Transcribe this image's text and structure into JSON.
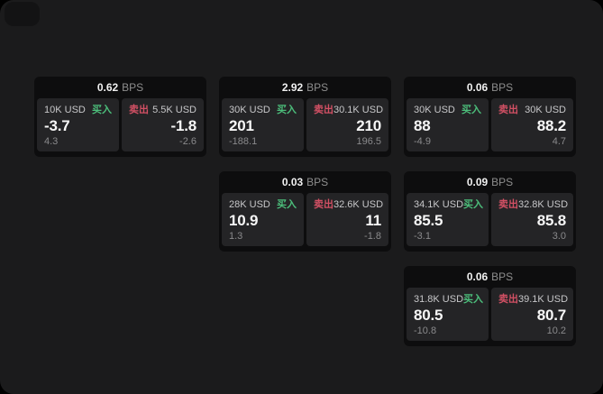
{
  "labels": {
    "bps": "BPS",
    "buy": "买入",
    "sell": "卖出"
  },
  "colors": {
    "buy_accent": "#4cbe7b",
    "sell_accent": "#d25064",
    "panel_bg": "#1b1b1c",
    "card_bg": "#0d0d0e",
    "pane_bg": "#242426"
  },
  "cards": [
    {
      "bps": "0.62",
      "buy": {
        "amount": "10K USD",
        "price": "-3.7",
        "delta": "4.3"
      },
      "sell": {
        "amount": "5.5K USD",
        "price": "-1.8",
        "delta": "-2.6"
      }
    },
    {
      "bps": "2.92",
      "buy": {
        "amount": "30K USD",
        "price": "201",
        "delta": "-188.1"
      },
      "sell": {
        "amount": "30.1K USD",
        "price": "210",
        "delta": "196.5"
      }
    },
    {
      "bps": "0.06",
      "buy": {
        "amount": "30K USD",
        "price": "88",
        "delta": "-4.9"
      },
      "sell": {
        "amount": "30K USD",
        "price": "88.2",
        "delta": "4.7"
      }
    },
    {
      "bps": "0.03",
      "buy": {
        "amount": "28K USD",
        "price": "10.9",
        "delta": "1.3"
      },
      "sell": {
        "amount": "32.6K USD",
        "price": "11",
        "delta": "-1.8"
      }
    },
    {
      "bps": "0.09",
      "buy": {
        "amount": "34.1K USD",
        "price": "85.5",
        "delta": "-3.1"
      },
      "sell": {
        "amount": "32.8K USD",
        "price": "85.8",
        "delta": "3.0"
      }
    },
    {
      "bps": "0.06",
      "buy": {
        "amount": "31.8K USD",
        "price": "80.5",
        "delta": "-10.8"
      },
      "sell": {
        "amount": "39.1K USD",
        "price": "80.7",
        "delta": "10.2"
      }
    }
  ]
}
